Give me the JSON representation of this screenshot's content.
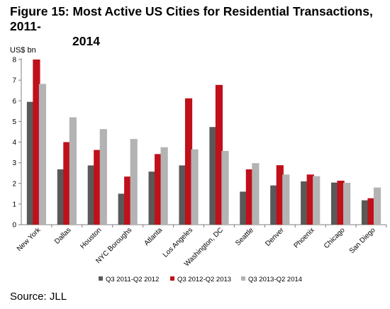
{
  "figure": {
    "title_line1": "Figure 15: Most Active US Cities for Residential Transactions, 2011-",
    "title_line2": "2014",
    "source": "Source: JLL"
  },
  "chart_data": {
    "type": "bar",
    "categories": [
      "New York",
      "Dallas",
      "Houston",
      "NYC Boroughs",
      "Atlanta",
      "Los Angeles",
      "Washington, DC",
      "Seattle",
      "Denver",
      "Phoenix",
      "Chicago",
      "San Diego"
    ],
    "series": [
      {
        "name": "Q3 2011-Q2 2012",
        "color": "#595959",
        "values": [
          5.95,
          2.68,
          2.87,
          1.5,
          2.57,
          2.87,
          4.73,
          1.6,
          1.9,
          2.1,
          2.04,
          1.18
        ]
      },
      {
        "name": "Q3 2012-Q2 2013",
        "color": "#c0101a",
        "values": [
          8.0,
          4.0,
          3.62,
          2.33,
          3.42,
          6.12,
          6.77,
          2.68,
          2.88,
          2.43,
          2.13,
          1.28
        ]
      },
      {
        "name": "Q3 2013-Q2 2014",
        "color": "#b3b3b3",
        "values": [
          6.82,
          5.2,
          4.63,
          4.15,
          3.75,
          3.65,
          3.57,
          2.98,
          2.43,
          2.35,
          2.03,
          1.8
        ]
      }
    ],
    "ylabel": "US$ bn",
    "ylim": [
      0,
      8
    ],
    "yticks": [
      0,
      1,
      2,
      3,
      4,
      5,
      6,
      7,
      8
    ],
    "grid": false,
    "legend_position": "bottom"
  }
}
